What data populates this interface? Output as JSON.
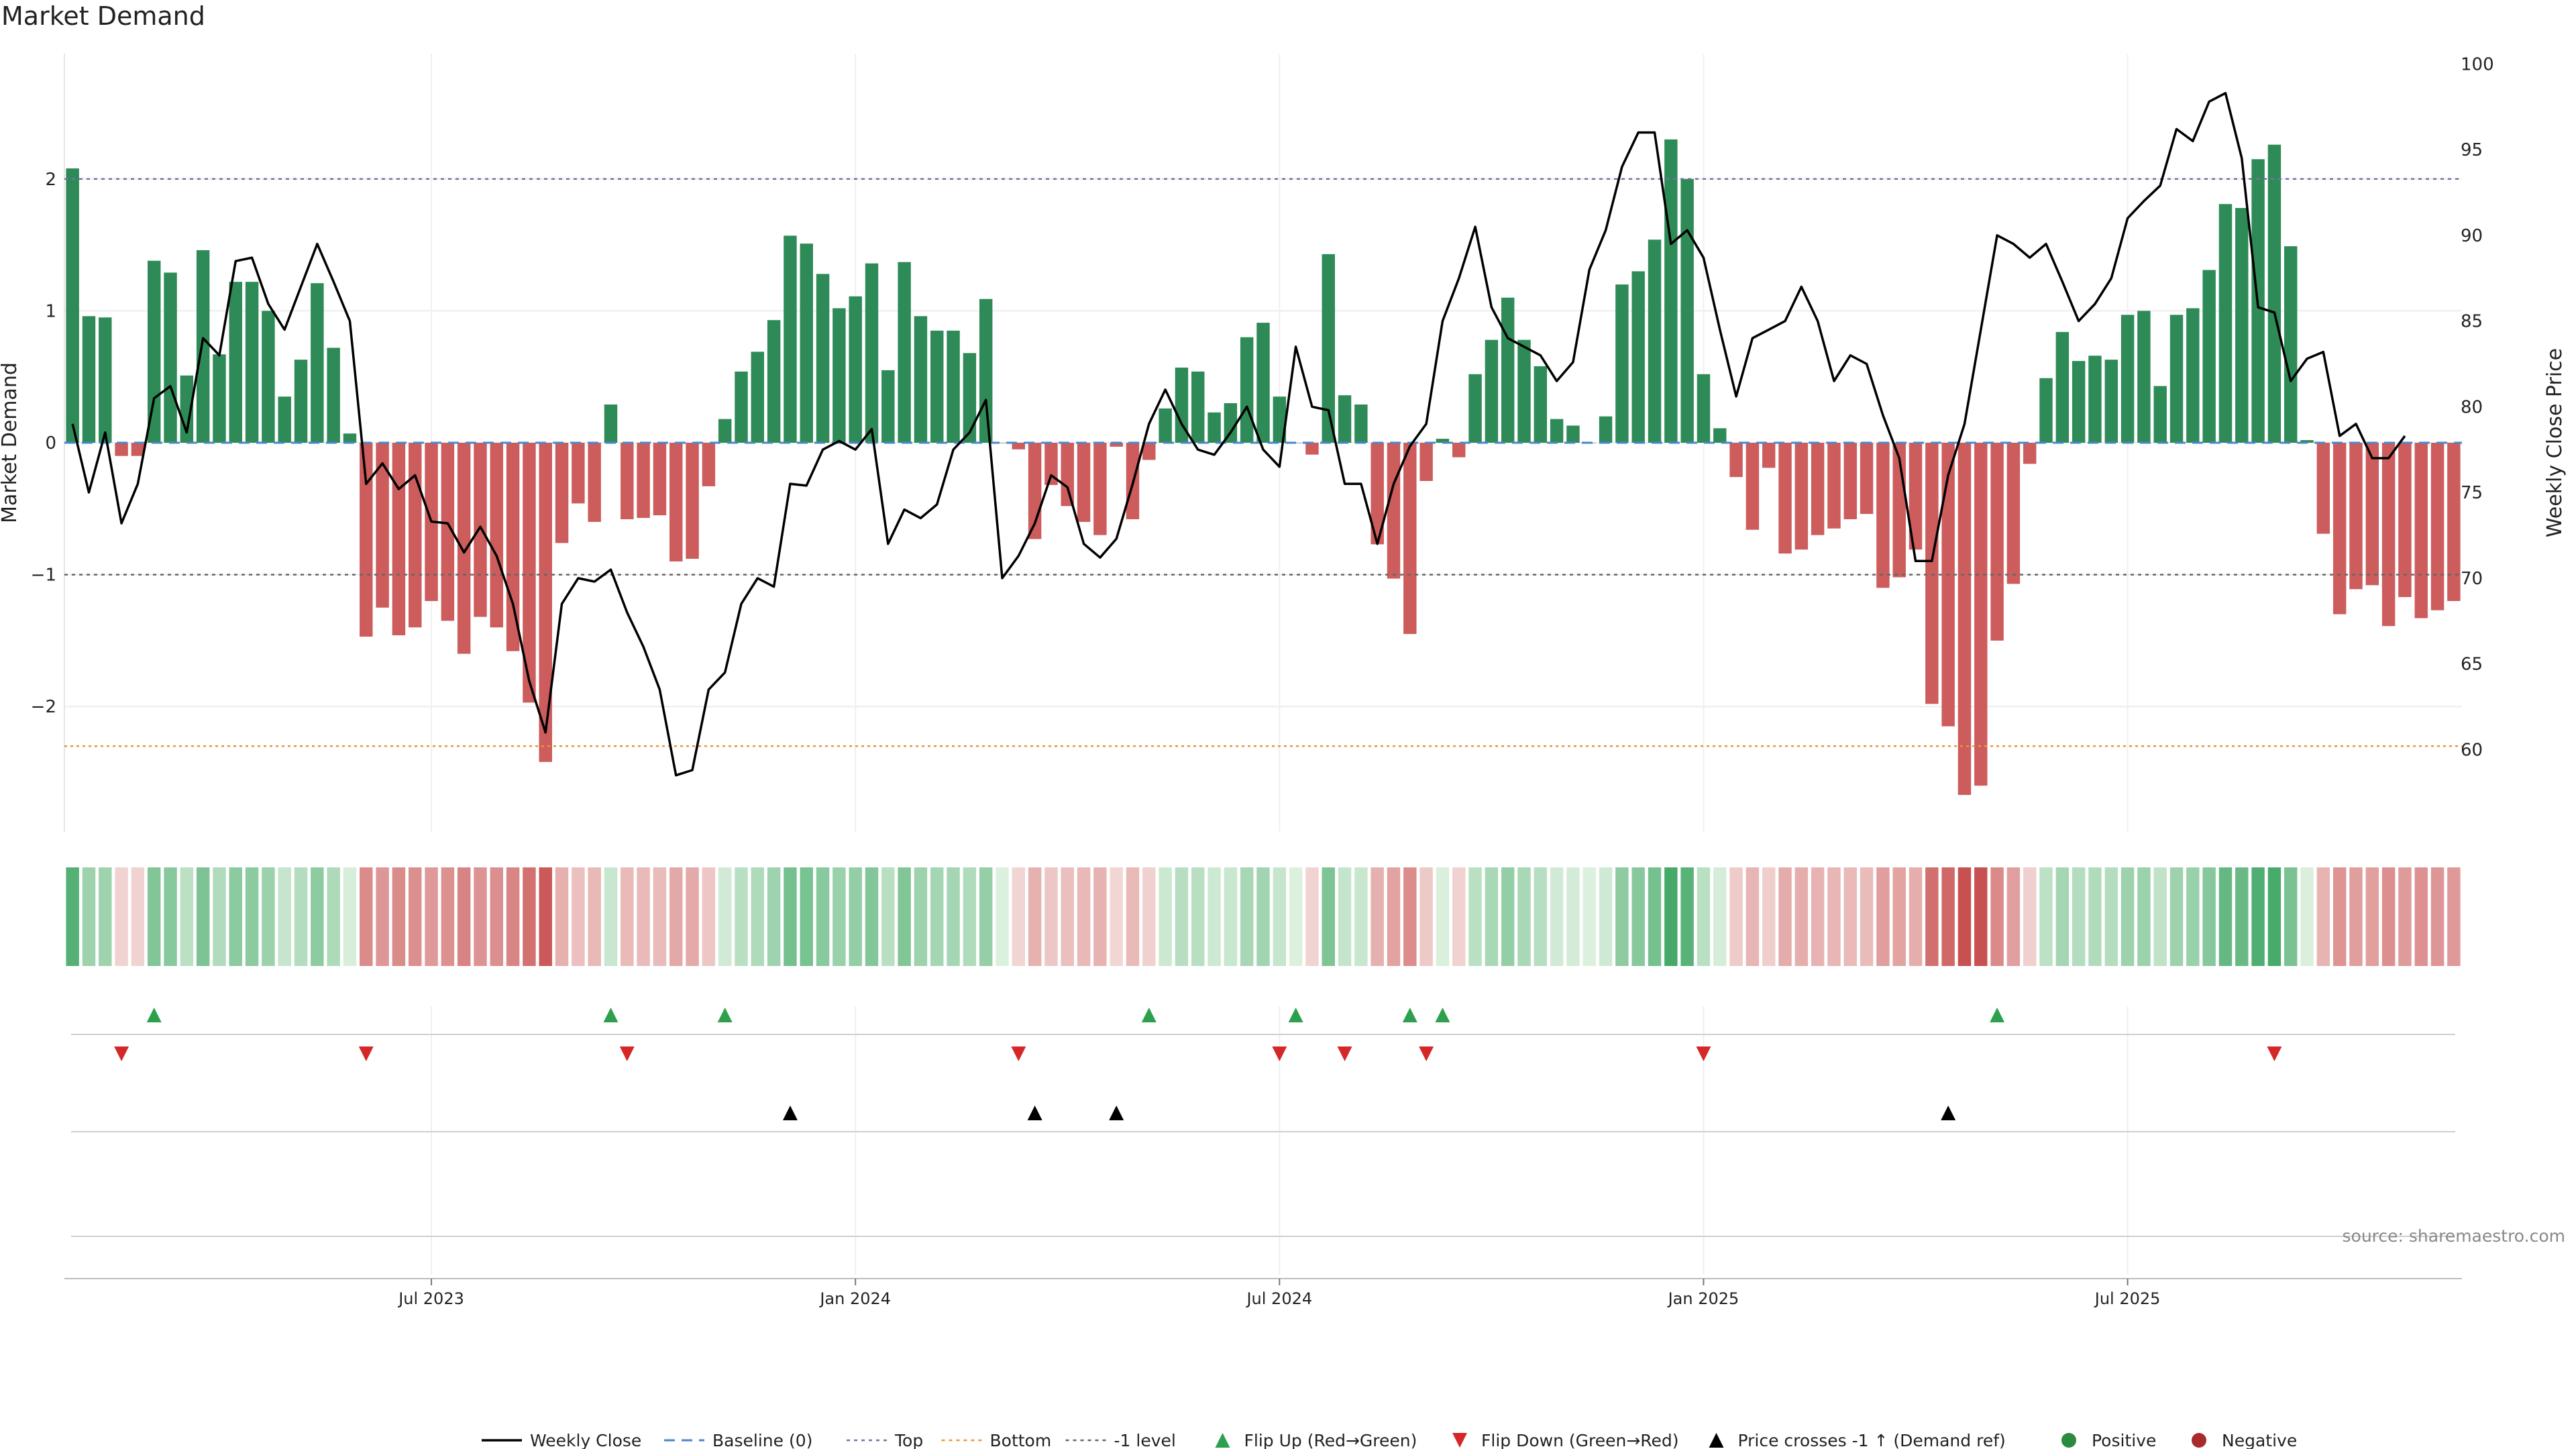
{
  "chart_data": {
    "type": "bar",
    "title": "Market Demand",
    "ylabel_left": "Market Demand",
    "ylabel_right": "Weekly Close Price",
    "ylim_left": [
      -2.95,
      2.95
    ],
    "ylim_right": [
      55.2,
      100.6
    ],
    "yticks_left": [
      {
        "value": 2,
        "label": "2"
      },
      {
        "value": 1,
        "label": "1"
      },
      {
        "value": 0,
        "label": "0"
      },
      {
        "value": -1,
        "label": "−1"
      },
      {
        "value": -2,
        "label": "−2"
      }
    ],
    "yticks_right": [
      {
        "value": 100,
        "label": "100"
      },
      {
        "value": 95,
        "label": "95"
      },
      {
        "value": 90,
        "label": "90"
      },
      {
        "value": 85,
        "label": "85"
      },
      {
        "value": 80,
        "label": "80"
      },
      {
        "value": 75,
        "label": "75"
      },
      {
        "value": 70,
        "label": "70"
      },
      {
        "value": 65,
        "label": "65"
      },
      {
        "value": 60,
        "label": "60"
      }
    ],
    "reference_lines": {
      "top": 2.0,
      "bottom": -2.3,
      "minus_one": -1.0,
      "baseline": 0
    },
    "x_ticks": [
      {
        "week": 22,
        "label": "Jul 2023"
      },
      {
        "week": 48,
        "label": "Jan 2024"
      },
      {
        "week": 74,
        "label": "Jul 2024"
      },
      {
        "week": 100,
        "label": "Jan 2025"
      },
      {
        "week": 126,
        "label": "Jul 2025"
      }
    ],
    "demand": [
      2.08,
      0.96,
      0.95,
      -0.1,
      -0.1,
      1.38,
      1.29,
      0.51,
      1.46,
      0.67,
      1.22,
      1.22,
      1.0,
      0.35,
      0.63,
      1.21,
      0.72,
      0.07,
      -1.47,
      -1.25,
      -1.46,
      -1.4,
      -1.2,
      -1.35,
      -1.6,
      -1.32,
      -1.4,
      -1.58,
      -1.97,
      -2.42,
      -0.76,
      -0.46,
      -0.6,
      0.29,
      -0.58,
      -0.57,
      -0.55,
      -0.9,
      -0.88,
      -0.33,
      0.18,
      0.54,
      0.69,
      0.93,
      1.57,
      1.51,
      1.28,
      1.02,
      1.11,
      1.36,
      0.55,
      1.37,
      0.96,
      0.85,
      0.85,
      0.68,
      1.09,
      0.0,
      -0.05,
      -0.73,
      -0.32,
      -0.48,
      -0.6,
      -0.7,
      -0.03,
      -0.58,
      -0.13,
      0.26,
      0.57,
      0.54,
      0.23,
      0.3,
      0.8,
      0.91,
      0.35,
      0.0,
      -0.09,
      1.43,
      0.36,
      0.29,
      -0.77,
      -1.03,
      -1.45,
      -0.29,
      0.03,
      -0.11,
      0.52,
      0.78,
      1.1,
      0.78,
      0.58,
      0.18,
      0.13,
      0.0,
      0.2,
      1.2,
      1.3,
      1.54,
      2.3,
      2.0,
      0.52,
      0.11,
      -0.26,
      -0.66,
      -0.19,
      -0.84,
      -0.81,
      -0.7,
      -0.65,
      -0.58,
      -0.54,
      -1.1,
      -1.02,
      -0.81,
      -1.98,
      -2.15,
      -2.67,
      -2.6,
      -1.5,
      -1.07,
      -0.16,
      0.49,
      0.84,
      0.62,
      0.66,
      0.63,
      0.97,
      1.0,
      0.43,
      0.97,
      1.02,
      1.31,
      1.81,
      1.78,
      2.15,
      2.26,
      1.49,
      0.02,
      -0.69,
      -1.3,
      -1.11,
      -1.08,
      -1.39,
      -1.17,
      -1.33,
      -1.27,
      -1.2
    ],
    "weekly_close": [
      79.0,
      75.0,
      78.5,
      73.2,
      75.5,
      80.5,
      81.2,
      78.5,
      84.0,
      83.0,
      88.5,
      88.7,
      86.0,
      84.5,
      87.0,
      89.5,
      87.3,
      85.0,
      75.5,
      76.7,
      75.2,
      76.0,
      73.3,
      73.2,
      71.5,
      73.0,
      71.3,
      68.5,
      64.0,
      61.0,
      68.5,
      70.0,
      69.8,
      70.5,
      68.0,
      66.0,
      63.5,
      58.5,
      58.8,
      63.5,
      64.5,
      68.5,
      70.0,
      69.5,
      75.5,
      75.4,
      77.5,
      78.0,
      77.5,
      78.7,
      72.0,
      74.0,
      73.5,
      74.3,
      77.5,
      78.5,
      80.4,
      70.0,
      71.3,
      73.2,
      76.0,
      75.3,
      72.0,
      71.2,
      72.3,
      75.5,
      79.0,
      81.0,
      79.0,
      77.5,
      77.2,
      78.5,
      80.0,
      77.5,
      76.5,
      83.5,
      80.0,
      79.8,
      75.5,
      75.5,
      72.0,
      75.5,
      77.7,
      79.0,
      85.0,
      87.5,
      90.5,
      85.8,
      84.0,
      83.5,
      83.0,
      81.5,
      82.6,
      88.0,
      90.3,
      94.0,
      96.0,
      96.0,
      89.5,
      90.3,
      88.7,
      84.5,
      80.6,
      84.0,
      84.5,
      85.0,
      87.0,
      85.0,
      81.5,
      83.0,
      82.5,
      79.5,
      77.0,
      71.0,
      71.0,
      76.0,
      79.0,
      84.5,
      90.0,
      89.5,
      88.7,
      89.5,
      87.3,
      85.0,
      86.0,
      87.5,
      91.0,
      92.0,
      92.9,
      96.2,
      95.5,
      97.8,
      98.3,
      94.5,
      85.8,
      85.5,
      81.5,
      82.8,
      83.2,
      78.3,
      79.0,
      77.0,
      77.0,
      78.3
    ],
    "flip_up_weeks": [
      5,
      33,
      40,
      66,
      75,
      82,
      84,
      118
    ],
    "flip_down_weeks": [
      3,
      18,
      34,
      58,
      74,
      78,
      83,
      100,
      135
    ],
    "price_cross_weeks": [
      44,
      59,
      64,
      115
    ],
    "legend": [
      {
        "key": "weekly_close",
        "label": "Weekly Close",
        "color": "#000000"
      },
      {
        "key": "baseline",
        "label": "Baseline (0)",
        "color": "#4a86c8"
      },
      {
        "key": "top",
        "label": "Top",
        "color": "#7a6fa8"
      },
      {
        "key": "bottom",
        "label": "Bottom",
        "color": "#e39b2f"
      },
      {
        "key": "minus_one",
        "label": "-1 level",
        "color": "#666666"
      },
      {
        "key": "flip_up",
        "label": "Flip Up (Red→Green)",
        "color": "#2ca04c"
      },
      {
        "key": "flip_down",
        "label": "Flip Down (Green→Red)",
        "color": "#d62728"
      },
      {
        "key": "price_cross",
        "label": "Price crosses -1 ↑ (Demand ref)",
        "color": "#000000"
      },
      {
        "key": "positive",
        "label": "Positive",
        "color": "#2a8a3e"
      },
      {
        "key": "negative",
        "label": "Negative",
        "color": "#a82a2a"
      }
    ],
    "source": "source: sharemaestro.com"
  },
  "colors": {
    "positive_bar": "#2e8b57",
    "negative_bar": "#cd5c5c"
  }
}
